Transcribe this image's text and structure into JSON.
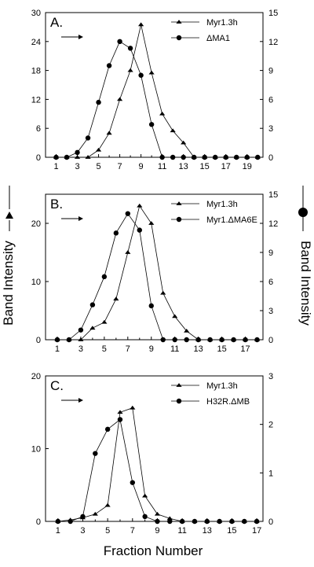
{
  "figure": {
    "ylabel_left": "Band Intensity",
    "ylabel_right": "Band Intensity",
    "xlabel": "Fraction Number"
  },
  "chart_data": [
    {
      "type": "line",
      "panel_label": "A.",
      "xlim": [
        0,
        20.5
      ],
      "x_ticks": [
        1,
        3,
        5,
        7,
        9,
        11,
        13,
        15,
        17,
        19
      ],
      "ylim_left": [
        0,
        30
      ],
      "y_ticks_left": [
        0,
        6,
        12,
        18,
        24,
        30
      ],
      "ylim_right": [
        0,
        15
      ],
      "y_ticks_right": [
        0,
        3,
        6,
        9,
        12,
        15
      ],
      "series": [
        {
          "name": "Myr1.3h",
          "marker": "triangle",
          "axis": "left",
          "x": [
            1,
            2,
            3,
            4,
            5,
            6,
            7,
            8,
            9,
            10,
            11,
            12,
            13,
            14,
            15,
            16,
            17,
            18,
            19,
            20
          ],
          "values": [
            0,
            0,
            0,
            0,
            1.5,
            5,
            12,
            18,
            27.5,
            17.5,
            9,
            5.5,
            3,
            0,
            0,
            0,
            0,
            0,
            0,
            0
          ]
        },
        {
          "name": "ΔMA1",
          "marker": "circle",
          "axis": "right",
          "x": [
            1,
            2,
            3,
            4,
            5,
            6,
            7,
            8,
            9,
            10,
            11,
            12,
            13,
            14,
            15,
            16,
            17,
            18,
            19,
            20
          ],
          "values": [
            0,
            0,
            0.5,
            2,
            5.7,
            9.5,
            12,
            11.3,
            8.5,
            3.4,
            0,
            0,
            0,
            0,
            0,
            0,
            0,
            0,
            0,
            0
          ]
        }
      ]
    },
    {
      "type": "line",
      "panel_label": "B.",
      "xlim": [
        0,
        18.5
      ],
      "x_ticks": [
        1,
        3,
        5,
        7,
        9,
        11,
        13,
        15,
        17
      ],
      "ylim_left": [
        0,
        25
      ],
      "y_ticks_left": [
        0,
        10,
        20
      ],
      "ylim_right": [
        0,
        15
      ],
      "y_ticks_right": [
        0,
        3,
        6,
        9,
        12,
        15
      ],
      "series": [
        {
          "name": "Myr1.3h",
          "marker": "triangle",
          "axis": "left",
          "x": [
            1,
            2,
            3,
            4,
            5,
            6,
            7,
            8,
            9,
            10,
            11,
            12,
            13,
            14,
            15,
            16,
            17,
            18
          ],
          "values": [
            0,
            0,
            0,
            2,
            3,
            7,
            15,
            23,
            20,
            8,
            4,
            1.5,
            0,
            0,
            0,
            0,
            0,
            0
          ]
        },
        {
          "name": "Myr1.ΔMA6E",
          "marker": "circle",
          "axis": "right",
          "x": [
            1,
            2,
            3,
            4,
            5,
            6,
            7,
            8,
            9,
            10,
            11,
            12,
            13,
            14,
            15,
            16,
            17,
            18
          ],
          "values": [
            0,
            0,
            1,
            3.6,
            6.5,
            11,
            13,
            11.3,
            3.5,
            0,
            0,
            0,
            0,
            0,
            0,
            0,
            0,
            0
          ]
        }
      ]
    },
    {
      "type": "line",
      "panel_label": "C.",
      "xlim": [
        0,
        17.5
      ],
      "x_ticks": [
        1,
        3,
        5,
        7,
        9,
        11,
        13,
        15,
        17
      ],
      "ylim_left": [
        0,
        20
      ],
      "y_ticks_left": [
        0,
        10,
        20
      ],
      "ylim_right": [
        0,
        3
      ],
      "y_ticks_right": [
        0,
        1,
        2,
        3
      ],
      "series": [
        {
          "name": "Myr1.3h",
          "marker": "triangle",
          "axis": "left",
          "x": [
            1,
            2,
            3,
            4,
            5,
            6,
            7,
            8,
            9,
            10,
            11,
            12,
            13,
            14,
            15,
            16,
            17
          ],
          "values": [
            0,
            0.2,
            0.5,
            1,
            2.2,
            15,
            15.6,
            3.5,
            1,
            0.4,
            0,
            0,
            0,
            0,
            0,
            0,
            0
          ]
        },
        {
          "name": "H32R.ΔMB",
          "marker": "circle",
          "axis": "right",
          "x": [
            1,
            2,
            3,
            4,
            5,
            6,
            7,
            8,
            9,
            10,
            11,
            12,
            13,
            14,
            15,
            16,
            17
          ],
          "values": [
            0,
            0,
            0.1,
            1.4,
            1.9,
            2.1,
            0.8,
            0.1,
            0,
            0,
            0,
            0,
            0,
            0,
            0,
            0,
            0
          ]
        }
      ]
    }
  ]
}
